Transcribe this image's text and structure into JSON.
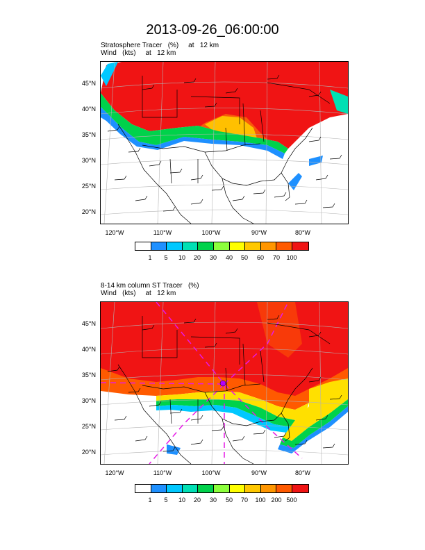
{
  "page": {
    "title": "2013-09-26_06:00:00"
  },
  "panels": [
    {
      "title_line1": "Stratosphere Tracer   (%)     at   12 km",
      "title_line2": "Wind   (kts)     at   12 km",
      "lat_labels": [
        "45°N",
        "40°N",
        "35°N",
        "30°N",
        "25°N",
        "20°N"
      ],
      "lon_labels": [
        "120°W",
        "110°W",
        "100°W",
        "90°W",
        "80°W"
      ],
      "colorbar": {
        "colors": [
          "#ffffff",
          "#1e90ff",
          "#00c8ff",
          "#00e0b4",
          "#00d24b",
          "#8cff3c",
          "#ffff00",
          "#ffc800",
          "#ff9600",
          "#ff5a00",
          "#f01414"
        ],
        "labels": [
          "1",
          "5",
          "10",
          "20",
          "30",
          "40",
          "50",
          "60",
          "70",
          "100"
        ]
      }
    },
    {
      "title_line1": "8-14 km column ST Tracer   (%)",
      "title_line2": "Wind   (kts)     at   12 km",
      "lat_labels": [
        "45°N",
        "40°N",
        "35°N",
        "30°N",
        "25°N",
        "20°N"
      ],
      "lon_labels": [
        "120°W",
        "110°W",
        "100°W",
        "90°W",
        "80°W"
      ],
      "colorbar": {
        "colors": [
          "#ffffff",
          "#1e90ff",
          "#00c8ff",
          "#00e0b4",
          "#00d24b",
          "#8cff3c",
          "#ffff00",
          "#ffc800",
          "#ff9600",
          "#ff5a00",
          "#f01414"
        ],
        "labels": [
          "1",
          "5",
          "10",
          "20",
          "30",
          "50",
          "70",
          "100",
          "200",
          "500"
        ]
      }
    }
  ]
}
